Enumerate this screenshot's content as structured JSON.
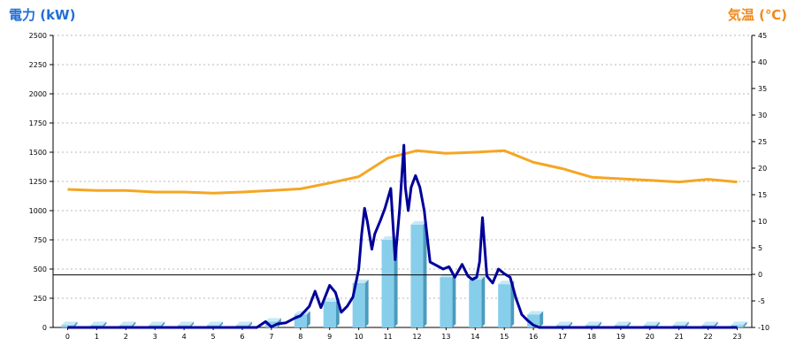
{
  "chart_data": {
    "type": "bar",
    "left_axis": {
      "label": "電力 (kW)",
      "ylim": [
        0,
        2500
      ],
      "ticks": [
        0,
        250,
        500,
        750,
        1000,
        1250,
        1500,
        1750,
        2000,
        2250,
        2500
      ],
      "color": "#1f6fd6"
    },
    "right_axis": {
      "label": "気温 (℃)",
      "ylim": [
        -10,
        45
      ],
      "ticks": [
        -10,
        -5,
        0,
        5,
        10,
        15,
        20,
        25,
        30,
        35,
        40,
        45
      ],
      "color": "#f08a1c"
    },
    "categories": [
      "0",
      "1",
      "2",
      "3",
      "4",
      "5",
      "6",
      "7",
      "8",
      "9",
      "10",
      "11",
      "12",
      "13",
      "14",
      "15",
      "16",
      "17",
      "18",
      "19",
      "20",
      "21",
      "22",
      "23"
    ],
    "series": [
      {
        "kind": "bar",
        "axis": "left",
        "color": "#87ceeb",
        "values": [
          20,
          20,
          20,
          20,
          20,
          20,
          20,
          50,
          110,
          220,
          380,
          750,
          880,
          430,
          410,
          370,
          110,
          20,
          20,
          20,
          20,
          20,
          20,
          20
        ]
      },
      {
        "kind": "line",
        "axis": "right",
        "color": "#f5a623",
        "values": [
          16,
          15.8,
          15.8,
          15.5,
          15.5,
          15.3,
          15.5,
          15.8,
          16.1,
          17.2,
          18.4,
          21.9,
          23.3,
          22.8,
          23.0,
          23.3,
          21.1,
          19.9,
          18.3,
          18.0,
          17.7,
          17.4,
          17.9,
          17.4
        ]
      },
      {
        "kind": "line",
        "axis": "left",
        "color": "#000099",
        "x": [
          0,
          1,
          2,
          3,
          4,
          5,
          6,
          6.5,
          6.8,
          7.0,
          7.2,
          7.5,
          7.8,
          8.0,
          8.3,
          8.5,
          8.7,
          9.0,
          9.2,
          9.4,
          9.6,
          9.8,
          10.0,
          10.1,
          10.2,
          10.3,
          10.45,
          10.55,
          10.75,
          10.9,
          11.1,
          11.25,
          11.4,
          11.55,
          11.6,
          11.7,
          11.8,
          11.95,
          12.1,
          12.25,
          12.45,
          12.6,
          12.9,
          13.1,
          13.3,
          13.55,
          13.75,
          13.9,
          14.05,
          14.15,
          14.25,
          14.4,
          14.6,
          14.8,
          15.0,
          15.2,
          15.4,
          15.6,
          15.8,
          16.0,
          16.2,
          17,
          18,
          19,
          20,
          21,
          22,
          23
        ],
        "values": [
          0,
          0,
          0,
          0,
          0,
          0,
          0,
          0,
          50,
          5,
          30,
          40,
          80,
          100,
          180,
          310,
          170,
          360,
          300,
          130,
          180,
          260,
          500,
          800,
          1020,
          900,
          670,
          800,
          920,
          1020,
          1190,
          580,
          1000,
          1560,
          1200,
          1000,
          1200,
          1300,
          1200,
          1000,
          560,
          540,
          500,
          520,
          430,
          540,
          440,
          410,
          430,
          560,
          940,
          440,
          380,
          500,
          460,
          430,
          250,
          110,
          60,
          20,
          0,
          0,
          0,
          0,
          0,
          0,
          0,
          0
        ]
      }
    ],
    "reference_line": {
      "axis": "left",
      "value": 450,
      "color": "#000000"
    },
    "grid": true
  }
}
